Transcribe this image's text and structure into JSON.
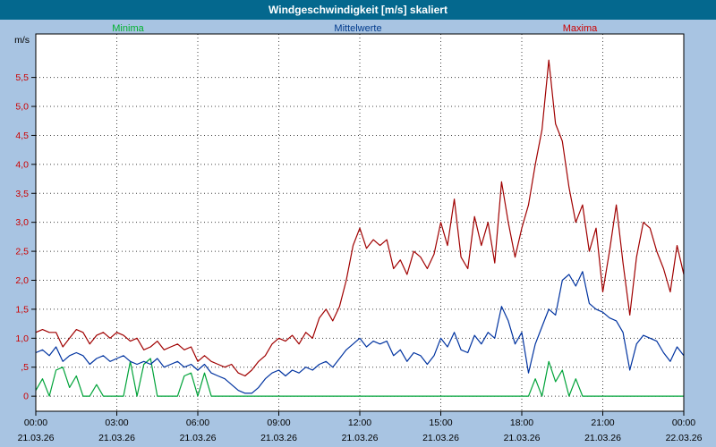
{
  "window": {
    "title": "Windgeschwindigkeit [m/s] skaliert"
  },
  "colors": {
    "titlebar": "#04688e",
    "background": "#a8c4e2",
    "plot_background": "#ffffff",
    "grid": "#404040",
    "axis": "#000000"
  },
  "legend": [
    {
      "label": "Minima",
      "color": "#00b22d"
    },
    {
      "label": "Mittelwerte",
      "color": "#003a8c"
    },
    {
      "label": "Maxima",
      "color": "#cc0000"
    }
  ],
  "chart_data": {
    "type": "line",
    "title": "Windgeschwindigkeit [m/s] skaliert",
    "ylabel": "m/s",
    "ylim": [
      -0.26,
      6.25
    ],
    "grid": "dotted",
    "legend_position": "top",
    "yticks": [
      0,
      0.5,
      1,
      1.5,
      2,
      2.5,
      3,
      3.5,
      4,
      4.5,
      5,
      5.5
    ],
    "ytick_labels": [
      "0",
      ",5",
      "1,0",
      "1,5",
      "2,0",
      "2,5",
      "3,0",
      "3,5",
      "4,0",
      "4,5",
      "5,0",
      "5,5"
    ],
    "ytick_color": "#cc0000",
    "xtick_color": "#000000",
    "xticks_hours": [
      0,
      3,
      6,
      9,
      12,
      15,
      18,
      21,
      24
    ],
    "xtick_labels": [
      "00:00",
      "03:00",
      "06:00",
      "09:00",
      "12:00",
      "15:00",
      "18:00",
      "21:00",
      "00:00"
    ],
    "xtick_dates": [
      "21.03.26",
      "21.03.26",
      "21.03.26",
      "21.03.26",
      "21.03.26",
      "21.03.26",
      "21.03.26",
      "21.03.26",
      "22.03.26"
    ],
    "x_start_hour": 0,
    "x_end_hour": 24,
    "x_step_hours": 0.25,
    "series": [
      {
        "name": "Minima",
        "color": "#00a339",
        "values": [
          0.1,
          0.3,
          0,
          0.45,
          0.5,
          0.15,
          0.35,
          0,
          0,
          0.2,
          0,
          0,
          0,
          0,
          0.6,
          0,
          0.55,
          0.65,
          0,
          0,
          0,
          0,
          0.35,
          0.4,
          0,
          0.4,
          0,
          0,
          0,
          0,
          0,
          0,
          0,
          0,
          0,
          0,
          0,
          0,
          0,
          0,
          0,
          0,
          0,
          0,
          0,
          0,
          0,
          0,
          0,
          0,
          0,
          0,
          0,
          0,
          0,
          0,
          0,
          0,
          0,
          0,
          0,
          0,
          0,
          0,
          0,
          0,
          0,
          0,
          0,
          0,
          0,
          0,
          0,
          0,
          0.3,
          0,
          0.6,
          0.25,
          0.45,
          0,
          0.3,
          0,
          0,
          0,
          0,
          0,
          0,
          0,
          0,
          0,
          0,
          0,
          0,
          0,
          0,
          0,
          0
        ]
      },
      {
        "name": "Mittelwerte",
        "color": "#0033a0",
        "values": [
          0.75,
          0.8,
          0.7,
          0.85,
          0.6,
          0.7,
          0.75,
          0.7,
          0.55,
          0.65,
          0.7,
          0.6,
          0.65,
          0.7,
          0.6,
          0.55,
          0.6,
          0.55,
          0.65,
          0.5,
          0.55,
          0.6,
          0.5,
          0.55,
          0.45,
          0.55,
          0.4,
          0.35,
          0.3,
          0.2,
          0.1,
          0.05,
          0.05,
          0.15,
          0.3,
          0.4,
          0.45,
          0.35,
          0.45,
          0.4,
          0.5,
          0.45,
          0.55,
          0.6,
          0.5,
          0.65,
          0.8,
          0.9,
          1.0,
          0.85,
          0.95,
          0.9,
          0.95,
          0.7,
          0.8,
          0.6,
          0.75,
          0.7,
          0.55,
          0.7,
          1.0,
          0.85,
          1.1,
          0.8,
          0.75,
          1.05,
          0.9,
          1.1,
          1.0,
          1.55,
          1.3,
          0.9,
          1.1,
          0.4,
          0.9,
          1.2,
          1.5,
          1.4,
          2.0,
          2.1,
          1.9,
          2.15,
          1.6,
          1.5,
          1.45,
          1.35,
          1.3,
          1.1,
          0.45,
          0.9,
          1.05,
          1.0,
          0.95,
          0.75,
          0.6,
          0.85,
          0.7
        ]
      },
      {
        "name": "Maxima",
        "color": "#a00000",
        "values": [
          1.1,
          1.15,
          1.1,
          1.1,
          0.85,
          1.0,
          1.15,
          1.1,
          0.9,
          1.05,
          1.1,
          1.0,
          1.1,
          1.05,
          0.95,
          1.0,
          0.8,
          0.85,
          0.95,
          0.8,
          0.85,
          0.9,
          0.8,
          0.85,
          0.6,
          0.7,
          0.6,
          0.55,
          0.5,
          0.55,
          0.4,
          0.35,
          0.45,
          0.6,
          0.7,
          0.9,
          1.0,
          0.95,
          1.05,
          0.9,
          1.1,
          1.0,
          1.35,
          1.5,
          1.3,
          1.55,
          2.0,
          2.6,
          2.9,
          2.55,
          2.7,
          2.6,
          2.7,
          2.2,
          2.35,
          2.1,
          2.5,
          2.4,
          2.2,
          2.45,
          3.0,
          2.6,
          3.4,
          2.4,
          2.2,
          3.1,
          2.6,
          3.0,
          2.3,
          3.7,
          3.0,
          2.4,
          2.9,
          3.3,
          4.0,
          4.6,
          5.8,
          4.7,
          4.4,
          3.6,
          3.0,
          3.3,
          2.5,
          2.9,
          1.8,
          2.5,
          3.3,
          2.3,
          1.4,
          2.4,
          3.0,
          2.9,
          2.5,
          2.2,
          1.8,
          2.6,
          2.1
        ]
      }
    ]
  }
}
